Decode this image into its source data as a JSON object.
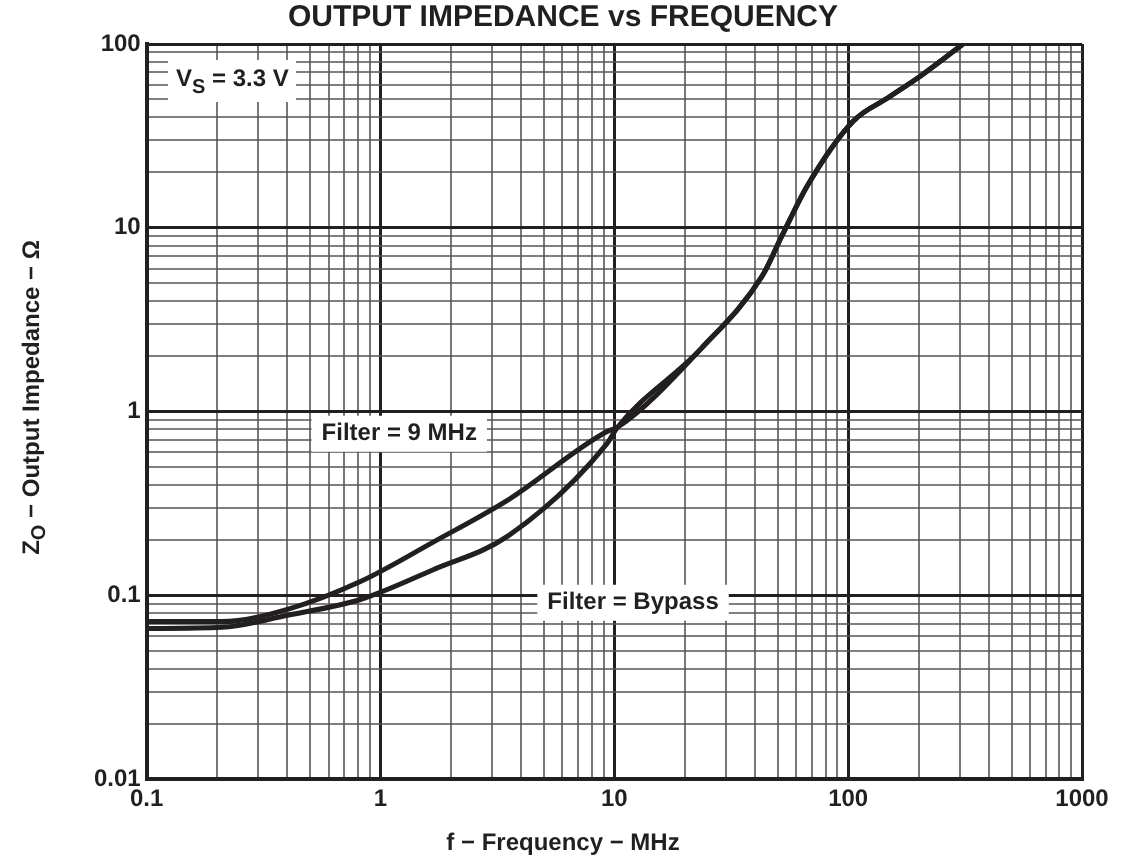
{
  "chart_data": {
    "type": "line",
    "title": "OUTPUT IMPEDANCE vs FREQUENCY",
    "xlabel": "f − Frequency − MHz",
    "ylabel": "Z$_{O}$ − Output Impedance − Ω",
    "log": "xy",
    "grid": true,
    "legend": false,
    "marker": "none",
    "line_style": "solid",
    "xlim": [
      0.1,
      1000
    ],
    "ylim": [
      0.01,
      100
    ],
    "xticks": [
      0.1,
      {
        "value": 0.2,
        "label": null
      },
      {
        "value": 0.3,
        "label": null
      },
      {
        "value": 0.4,
        "label": null
      },
      {
        "value": 0.5,
        "label": null
      },
      {
        "value": 0.6,
        "label": null
      },
      {
        "value": 0.7,
        "label": null
      },
      {
        "value": 0.8,
        "label": null
      },
      {
        "value": 0.9,
        "label": null
      },
      1,
      {
        "value": 2,
        "label": null
      },
      {
        "value": 3,
        "label": null
      },
      {
        "value": 4,
        "label": null
      },
      {
        "value": 5,
        "label": null
      },
      {
        "value": 6,
        "label": null
      },
      {
        "value": 7,
        "label": null
      },
      {
        "value": 8,
        "label": null
      },
      {
        "value": 9,
        "label": null
      },
      10,
      {
        "value": 20,
        "label": null
      },
      {
        "value": 30,
        "label": null
      },
      {
        "value": 40,
        "label": null
      },
      {
        "value": 50,
        "label": null
      },
      {
        "value": 60,
        "label": null
      },
      {
        "value": 70,
        "label": null
      },
      {
        "value": 80,
        "label": null
      },
      {
        "value": 90,
        "label": null
      },
      100,
      {
        "value": 200,
        "label": null
      },
      {
        "value": 300,
        "label": null
      },
      {
        "value": 400,
        "label": null
      },
      {
        "value": 500,
        "label": null
      },
      {
        "value": 600,
        "label": null
      },
      {
        "value": 700,
        "label": null
      },
      {
        "value": 800,
        "label": null
      },
      {
        "value": 900,
        "label": null
      },
      1000
    ],
    "yticks": [
      0.01,
      {
        "value": 0.02,
        "label": null
      },
      {
        "value": 0.03,
        "label": null
      },
      {
        "value": 0.04,
        "label": null
      },
      {
        "value": 0.05,
        "label": null
      },
      {
        "value": 0.06,
        "label": null
      },
      {
        "value": 0.07,
        "label": null
      },
      {
        "value": 0.08,
        "label": null
      },
      {
        "value": 0.09,
        "label": null
      },
      0.1,
      {
        "value": 0.2,
        "label": null
      },
      {
        "value": 0.3,
        "label": null
      },
      {
        "value": 0.4,
        "label": null
      },
      {
        "value": 0.5,
        "label": null
      },
      {
        "value": 0.6,
        "label": null
      },
      {
        "value": 0.7,
        "label": null
      },
      {
        "value": 0.8,
        "label": null
      },
      {
        "value": 0.9,
        "label": null
      },
      1,
      {
        "value": 2,
        "label": null
      },
      {
        "value": 3,
        "label": null
      },
      {
        "value": 4,
        "label": null
      },
      {
        "value": 5,
        "label": null
      },
      {
        "value": 6,
        "label": null
      },
      {
        "value": 7,
        "label": null
      },
      {
        "value": 8,
        "label": null
      },
      {
        "value": 9,
        "label": null
      },
      10,
      {
        "value": 20,
        "label": null
      },
      {
        "value": 30,
        "label": null
      },
      {
        "value": 40,
        "label": null
      },
      {
        "value": 50,
        "label": null
      },
      {
        "value": 60,
        "label": null
      },
      {
        "value": 70,
        "label": null
      },
      {
        "value": 80,
        "label": null
      },
      {
        "value": 90,
        "label": null
      },
      100
    ],
    "annotations": [
      "V$_{S}$ = 3.3 V"
    ],
    "series": [
      {
        "name": "Filter = 9 MHz",
        "color": "#231f20",
        "x": [
          0.1,
          0.21,
          0.4,
          0.82,
          1.68,
          3.5,
          9.3,
          10.3,
          23.5,
          43,
          52,
          67,
          105,
          148,
          204,
          310
        ],
        "values": [
          0.072,
          0.072,
          0.084,
          0.119,
          0.195,
          0.33,
          0.78,
          0.82,
          2.2,
          5.5,
          9,
          17,
          38,
          51,
          67,
          100
        ]
      },
      {
        "name": "Filter = Bypass",
        "color": "#231f20",
        "x": [
          0.1,
          0.21,
          0.4,
          0.82,
          1.68,
          3.5,
          9.3,
          10.3,
          23.5,
          43,
          52,
          67,
          105,
          148,
          204,
          310
        ],
        "values": [
          0.066,
          0.067,
          0.078,
          0.095,
          0.138,
          0.21,
          0.67,
          0.82,
          2.2,
          5.5,
          9,
          17,
          38,
          51,
          67,
          100
        ]
      }
    ]
  }
}
